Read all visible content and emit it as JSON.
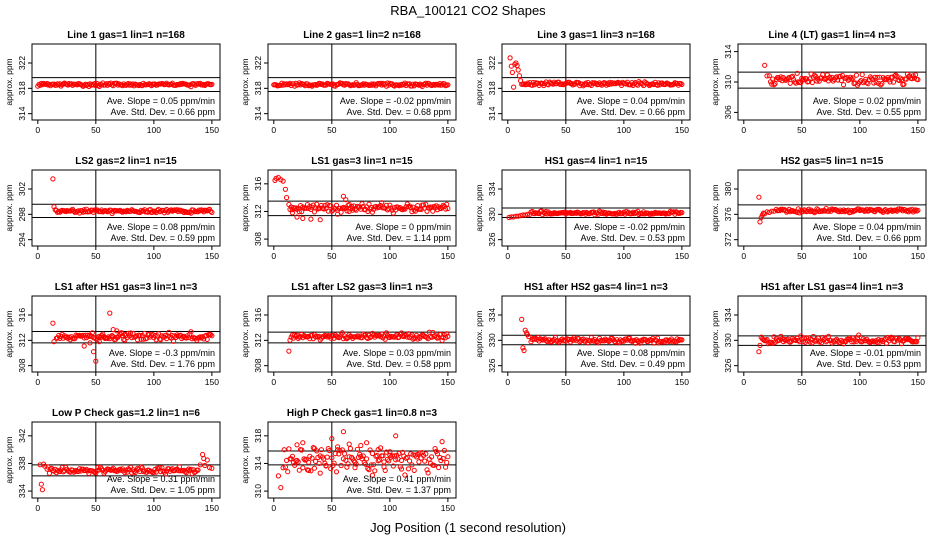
{
  "figure": {
    "title": "RBA_100121  CO2 Shapes",
    "xlabel": "Jog Position (1 second resolution)"
  },
  "chart_data": [
    {
      "type": "scatter",
      "title": "Line 1 gas=1 lin=1 n=168",
      "ylabel": "approx. ppm",
      "xlim": [
        -5,
        157
      ],
      "ylim": [
        313,
        325
      ],
      "yticks": [
        314,
        318,
        322
      ],
      "xticks": [
        0,
        50,
        100,
        150
      ],
      "hlines": [
        319.7,
        317.5
      ],
      "vline": 50,
      "x_start": 0,
      "x_end": 150,
      "baseline": 318.6,
      "noise": 0.12,
      "start_points": [],
      "slope_label": "Ave. Slope = 0.05 ppm/min",
      "sd_label": "Ave. Std. Dev. = 0.66 ppm"
    },
    {
      "type": "scatter",
      "title": "Line 2 gas=1 lin=2 n=168",
      "ylabel": "approx. ppm",
      "xlim": [
        -5,
        157
      ],
      "ylim": [
        313,
        325
      ],
      "yticks": [
        314,
        318,
        322
      ],
      "xticks": [
        0,
        50,
        100,
        150
      ],
      "hlines": [
        319.7,
        317.5
      ],
      "vline": 50,
      "x_start": 0,
      "x_end": 150,
      "baseline": 318.6,
      "noise": 0.12,
      "start_points": [],
      "slope_label": "Ave. Slope = -0.02 ppm/min",
      "sd_label": "Ave. Std. Dev. = 0.68 ppm"
    },
    {
      "type": "scatter",
      "title": "Line 3 gas=1 lin=3 n=168",
      "ylabel": "approx. ppm",
      "xlim": [
        -5,
        157
      ],
      "ylim": [
        313,
        325
      ],
      "yticks": [
        314,
        318,
        322
      ],
      "xticks": [
        0,
        50,
        100,
        150
      ],
      "hlines": [
        319.7,
        317.5
      ],
      "vline": 50,
      "x_start": 12,
      "x_end": 150,
      "baseline": 318.7,
      "noise": 0.15,
      "start_points": [
        [
          2,
          322.8
        ],
        [
          3,
          321.5
        ],
        [
          4,
          320.5
        ],
        [
          5,
          318.2
        ],
        [
          6,
          321.8
        ],
        [
          7,
          322.0
        ],
        [
          8,
          321.6
        ],
        [
          9,
          320.9
        ],
        [
          10,
          320.0
        ],
        [
          11,
          319.2
        ]
      ],
      "slope_label": "Ave. Slope = 0.04 ppm/min",
      "sd_label": "Ave. Std. Dev. = 0.66 ppm"
    },
    {
      "type": "scatter",
      "title": "Line 4 (LT) gas=1 lin=4 n=3",
      "ylabel": "approx. ppm",
      "xlim": [
        -5,
        157
      ],
      "ylim": [
        305,
        315
      ],
      "yticks": [
        306,
        310,
        314
      ],
      "xticks": [
        0,
        50,
        100,
        150
      ],
      "hlines": [
        311.3,
        309.2
      ],
      "vline": 50,
      "x_start": 22,
      "x_end": 150,
      "baseline": 310.3,
      "noise": 0.35,
      "start_points": [
        [
          18,
          312.2
        ],
        [
          20,
          310.8
        ]
      ],
      "slope_label": "Ave. Slope = 0.02 ppm/min",
      "sd_label": "Ave. Std. Dev. = 0.55 ppm"
    },
    {
      "type": "scatter",
      "title": "LS2 gas=2 lin=1 n=15",
      "ylabel": "approx. ppm",
      "xlim": [
        -5,
        157
      ],
      "ylim": [
        293,
        305
      ],
      "yticks": [
        294,
        298,
        302
      ],
      "xticks": [
        0,
        50,
        100,
        150
      ],
      "hlines": [
        299.6,
        297.5
      ],
      "vline": 50,
      "x_start": 15,
      "x_end": 150,
      "baseline": 298.5,
      "noise": 0.15,
      "start_points": [
        [
          13,
          303.6
        ],
        [
          14,
          299.2
        ]
      ],
      "slope_label": "Ave. Slope = 0.08 ppm/min",
      "sd_label": "Ave. Std. Dev. = 0.59 ppm"
    },
    {
      "type": "scatter",
      "title": "LS1 gas=3 lin=1 n=15",
      "ylabel": "approx. ppm",
      "xlim": [
        -5,
        157
      ],
      "ylim": [
        307,
        318
      ],
      "yticks": [
        308,
        312,
        316
      ],
      "xticks": [
        0,
        50,
        100,
        150
      ],
      "hlines": [
        313.5,
        311.4
      ],
      "vline": 50,
      "x_start": 14,
      "x_end": 150,
      "baseline": 312.5,
      "noise": 0.3,
      "start_points": [
        [
          1,
          316.5
        ],
        [
          2,
          316.8
        ],
        [
          4,
          316.9
        ],
        [
          6,
          316.6
        ],
        [
          8,
          316.4
        ],
        [
          10,
          315.2
        ],
        [
          11,
          314.0
        ],
        [
          13,
          313.0
        ],
        [
          16,
          311.8
        ],
        [
          20,
          311.2
        ],
        [
          25,
          311.0
        ],
        [
          32,
          310.9
        ],
        [
          40,
          310.8
        ],
        [
          55,
          311.6
        ],
        [
          60,
          314.2
        ],
        [
          62,
          313.7
        ],
        [
          65,
          313.0
        ],
        [
          68,
          312.2
        ]
      ],
      "slope_label": "Ave. Slope = 0 ppm/min",
      "sd_label": "Ave. Std. Dev. = 1.14 ppm"
    },
    {
      "type": "scatter",
      "title": "HS1 gas=4 lin=1 n=15",
      "ylabel": "approx. ppm",
      "xlim": [
        -5,
        157
      ],
      "ylim": [
        325,
        337
      ],
      "yticks": [
        326,
        330,
        334
      ],
      "xticks": [
        0,
        50,
        100,
        150
      ],
      "hlines": [
        331.0,
        329.5
      ],
      "vline": 50,
      "x_start": 20,
      "x_end": 150,
      "baseline": 330.2,
      "noise": 0.12,
      "start_points": [
        [
          1,
          329.5
        ],
        [
          3,
          329.6
        ],
        [
          5,
          329.6
        ],
        [
          7,
          329.7
        ],
        [
          9,
          329.7
        ],
        [
          11,
          329.8
        ],
        [
          13,
          329.9
        ],
        [
          15,
          329.9
        ],
        [
          17,
          330.0
        ],
        [
          19,
          330.0
        ]
      ],
      "slope_label": "Ave. Slope = -0.02 ppm/min",
      "sd_label": "Ave. Std. Dev. = 0.53 ppm"
    },
    {
      "type": "scatter",
      "title": "HS2 gas=5 lin=1 n=15",
      "ylabel": "approx. ppm",
      "xlim": [
        -5,
        157
      ],
      "ylim": [
        371,
        383
      ],
      "yticks": [
        372,
        376,
        380
      ],
      "xticks": [
        0,
        50,
        100,
        150
      ],
      "hlines": [
        377.5,
        375.4
      ],
      "vline": 50,
      "x_start": 28,
      "x_end": 150,
      "baseline": 376.6,
      "noise": 0.15,
      "start_points": [
        [
          13,
          378.7
        ],
        [
          14,
          374.8
        ],
        [
          15,
          375.5
        ],
        [
          16,
          375.9
        ],
        [
          17,
          376.2
        ],
        [
          18,
          376.1
        ],
        [
          20,
          376.4
        ],
        [
          22,
          376.3
        ],
        [
          24,
          376.5
        ],
        [
          26,
          376.5
        ]
      ],
      "slope_label": "Ave. Slope = 0.04 ppm/min",
      "sd_label": "Ave. Std. Dev. = 0.66 ppm"
    },
    {
      "type": "scatter",
      "title": "LS1 after HS1 gas=3 lin=1 n=3",
      "ylabel": "approx. ppm",
      "xlim": [
        -5,
        157
      ],
      "ylim": [
        307,
        319
      ],
      "yticks": [
        308,
        312,
        316
      ],
      "xticks": [
        0,
        50,
        100,
        150
      ],
      "hlines": [
        313.4,
        311.6
      ],
      "vline": 50,
      "x_start": 16,
      "x_end": 150,
      "baseline": 312.6,
      "noise": 0.3,
      "start_points": [
        [
          13,
          314.7
        ],
        [
          14,
          311.8
        ],
        [
          40,
          311.1
        ],
        [
          45,
          311.6
        ],
        [
          48,
          310.2
        ],
        [
          50,
          308.7
        ],
        [
          53,
          311.8
        ],
        [
          55,
          312.8
        ],
        [
          58,
          312.3
        ],
        [
          62,
          316.3
        ],
        [
          65,
          313.7
        ],
        [
          68,
          313.5
        ],
        [
          72,
          313.2
        ],
        [
          75,
          312.0
        ]
      ],
      "slope_label": "Ave. Slope = -0.3 ppm/min",
      "sd_label": "Ave. Std. Dev. = 1.76 ppm"
    },
    {
      "type": "scatter",
      "title": "LS1 after LS2 gas=3 lin=1 n=3",
      "ylabel": "approx. ppm",
      "xlim": [
        -5,
        157
      ],
      "ylim": [
        307,
        319
      ],
      "yticks": [
        308,
        312,
        316
      ],
      "xticks": [
        0,
        50,
        100,
        150
      ],
      "hlines": [
        313.3,
        311.6
      ],
      "vline": 50,
      "x_start": 16,
      "x_end": 150,
      "baseline": 312.6,
      "noise": 0.25,
      "start_points": [
        [
          13,
          310.3
        ],
        [
          14,
          312.0
        ],
        [
          15,
          312.5
        ]
      ],
      "slope_label": "Ave. Slope = 0.03 ppm/min",
      "sd_label": "Ave. Std. Dev. = 0.58 ppm"
    },
    {
      "type": "scatter",
      "title": "HS1 after HS2 gas=4 lin=1 n=3",
      "ylabel": "approx. ppm",
      "xlim": [
        -5,
        157
      ],
      "ylim": [
        325,
        337
      ],
      "yticks": [
        326,
        330,
        334
      ],
      "xticks": [
        0,
        50,
        100,
        150
      ],
      "hlines": [
        330.8,
        329.3
      ],
      "vline": 50,
      "x_start": 20,
      "x_end": 150,
      "baseline": 330.0,
      "noise": 0.2,
      "start_points": [
        [
          12,
          333.3
        ],
        [
          13,
          328.8
        ],
        [
          14,
          328.4
        ],
        [
          15,
          331.6
        ],
        [
          16,
          331.2
        ],
        [
          17,
          330.9
        ],
        [
          18,
          330.6
        ]
      ],
      "slope_label": "Ave. Slope = 0.08 ppm/min",
      "sd_label": "Ave. Std. Dev. = 0.49 ppm"
    },
    {
      "type": "scatter",
      "title": "HS1 after LS1 gas=4 lin=1 n=3",
      "ylabel": "approx. ppm",
      "xlim": [
        -5,
        157
      ],
      "ylim": [
        325,
        337
      ],
      "yticks": [
        326,
        330,
        334
      ],
      "xticks": [
        0,
        50,
        100,
        150
      ],
      "hlines": [
        330.7,
        329.2
      ],
      "vline": 50,
      "x_start": 16,
      "x_end": 150,
      "baseline": 330.0,
      "noise": 0.3,
      "start_points": [
        [
          13,
          328.2
        ],
        [
          14,
          329.2
        ],
        [
          15,
          330.5
        ]
      ],
      "slope_label": "Ave. Slope = -0.01 ppm/min",
      "sd_label": "Ave. Std. Dev. = 0.53 ppm"
    },
    {
      "type": "scatter",
      "title": "Low P Check gas=1.2 lin=1 n=6",
      "ylabel": "approx. ppm",
      "xlim": [
        -5,
        157
      ],
      "ylim": [
        333,
        344
      ],
      "yticks": [
        334,
        338,
        342
      ],
      "xticks": [
        0,
        50,
        100,
        150
      ],
      "hlines": [
        337.8,
        336.2
      ],
      "vline": 50,
      "x_start": 8,
      "x_end": 138,
      "baseline": 337.0,
      "noise": 0.25,
      "start_points": [
        [
          2,
          337.8
        ],
        [
          3,
          335.0
        ],
        [
          4,
          334.2
        ],
        [
          5,
          337.9
        ],
        [
          6,
          337.6
        ],
        [
          140,
          337.8
        ],
        [
          142,
          339.3
        ],
        [
          143,
          338.7
        ],
        [
          144,
          337.7
        ],
        [
          146,
          338.5
        ],
        [
          148,
          337.4
        ],
        [
          150,
          337.3
        ]
      ],
      "slope_label": "Ave. Slope = 0.31 ppm/min",
      "sd_label": "Ave. Std. Dev. = 1.05 ppm"
    },
    {
      "type": "scatter",
      "title": "High P Check gas=1 lin=0.8 n=3",
      "ylabel": "approx. ppm",
      "xlim": [
        -5,
        157
      ],
      "ylim": [
        309,
        320
      ],
      "yticks": [
        310,
        314,
        318
      ],
      "xticks": [
        0,
        50,
        100,
        150
      ],
      "hlines": [
        315.8,
        313.8
      ],
      "vline": 50,
      "x_start": 8,
      "x_end": 150,
      "baseline": 314.6,
      "noise": 0.9,
      "start_points": [
        [
          4,
          312.2
        ],
        [
          6,
          310.5
        ],
        [
          20,
          316.7
        ],
        [
          25,
          317.0
        ],
        [
          30,
          313.0
        ],
        [
          35,
          316.2
        ],
        [
          40,
          312.6
        ],
        [
          45,
          313.7
        ],
        [
          50,
          317.6
        ],
        [
          55,
          316.4
        ],
        [
          60,
          318.6
        ],
        [
          65,
          316.8
        ],
        [
          70,
          313.4
        ],
        [
          75,
          316.6
        ],
        [
          80,
          317.0
        ],
        [
          85,
          312.3
        ],
        [
          90,
          316.0
        ],
        [
          95,
          313.5
        ],
        [
          100,
          315.7
        ],
        [
          105,
          318.0
        ],
        [
          110,
          313.2
        ]
      ],
      "slope_label": "Ave. Slope = 0.41 ppm/min",
      "sd_label": "Ave. Std. Dev. = 1.37 ppm"
    }
  ]
}
